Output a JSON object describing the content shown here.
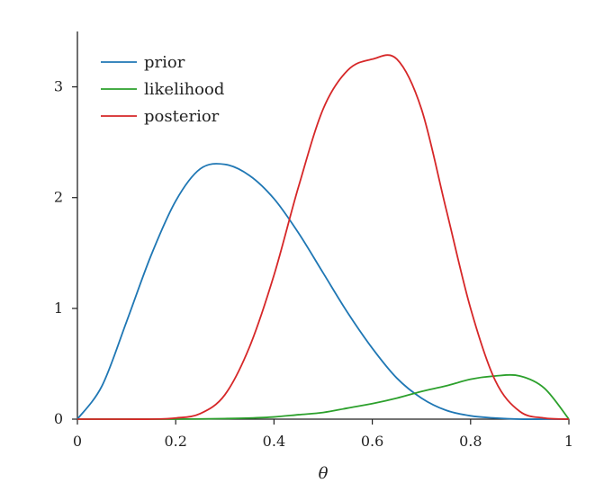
{
  "chart_data": {
    "type": "line",
    "title": "",
    "xlabel": "θ",
    "ylabel": "",
    "xlim": [
      0,
      1
    ],
    "ylim": [
      0,
      3.5
    ],
    "xticks": [
      0,
      0.2,
      0.4,
      0.6,
      0.8,
      1
    ],
    "xtick_labels": [
      "0",
      "0.2",
      "0.4",
      "0.6",
      "0.8",
      "1"
    ],
    "yticks": [
      0,
      1,
      2,
      3
    ],
    "ytick_labels": [
      "0",
      "1",
      "2",
      "3"
    ],
    "grid": false,
    "legend": {
      "placement": "top-left",
      "entries": [
        "prior",
        "likelihood",
        "posterior"
      ]
    },
    "x": [
      0,
      0.05,
      0.1,
      0.15,
      0.2,
      0.25,
      0.3,
      0.35,
      0.4,
      0.45,
      0.5,
      0.55,
      0.6,
      0.65,
      0.7,
      0.75,
      0.8,
      0.85,
      0.9,
      0.95,
      1.0
    ],
    "series": [
      {
        "name": "prior",
        "color": "#1f77b4",
        "values": [
          0,
          0.3,
          0.88,
          1.48,
          1.97,
          2.26,
          2.3,
          2.2,
          1.99,
          1.68,
          1.32,
          0.96,
          0.64,
          0.37,
          0.19,
          0.08,
          0.03,
          0.01,
          0.0,
          0.0,
          0.0
        ]
      },
      {
        "name": "likelihood",
        "color": "#2ca02c",
        "values": [
          0,
          0,
          0,
          0,
          0,
          0.002,
          0.005,
          0.01,
          0.02,
          0.04,
          0.06,
          0.1,
          0.14,
          0.19,
          0.25,
          0.3,
          0.36,
          0.39,
          0.39,
          0.28,
          0
        ]
      },
      {
        "name": "posterior",
        "color": "#d62728",
        "values": [
          0,
          0,
          0,
          0,
          0.01,
          0.05,
          0.22,
          0.65,
          1.3,
          2.1,
          2.8,
          3.15,
          3.25,
          3.25,
          2.8,
          1.9,
          1.0,
          0.35,
          0.07,
          0.01,
          0
        ]
      }
    ]
  }
}
